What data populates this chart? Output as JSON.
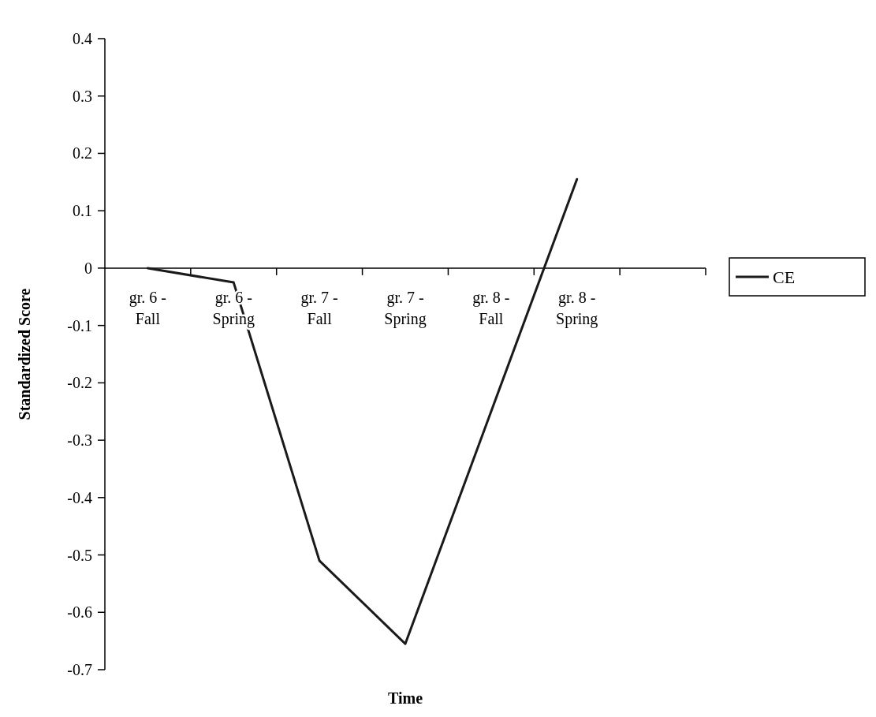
{
  "chart_data": {
    "type": "line",
    "xlabel": "Time",
    "ylabel": "Standardized Score",
    "categories": [
      "gr. 6 - Fall",
      "gr. 6 - Spring",
      "gr. 7 - Fall",
      "gr. 7 - Spring",
      "gr. 8 - Fall",
      "gr. 8 - Spring",
      null
    ],
    "series": [
      {
        "name": "CE",
        "color": "#1a1a1a",
        "values": [
          0,
          -0.025,
          -0.51,
          -0.655,
          -0.25,
          0.155,
          null
        ]
      }
    ],
    "ylim": [
      -0.7,
      0.4
    ],
    "yticks": [
      -0.7,
      -0.6,
      -0.5,
      -0.4,
      -0.3,
      -0.2,
      -0.1,
      0,
      0.1,
      0.2,
      0.3,
      0.4
    ],
    "grid": false,
    "legend": "right",
    "marker": "none",
    "line_style": "solid"
  }
}
